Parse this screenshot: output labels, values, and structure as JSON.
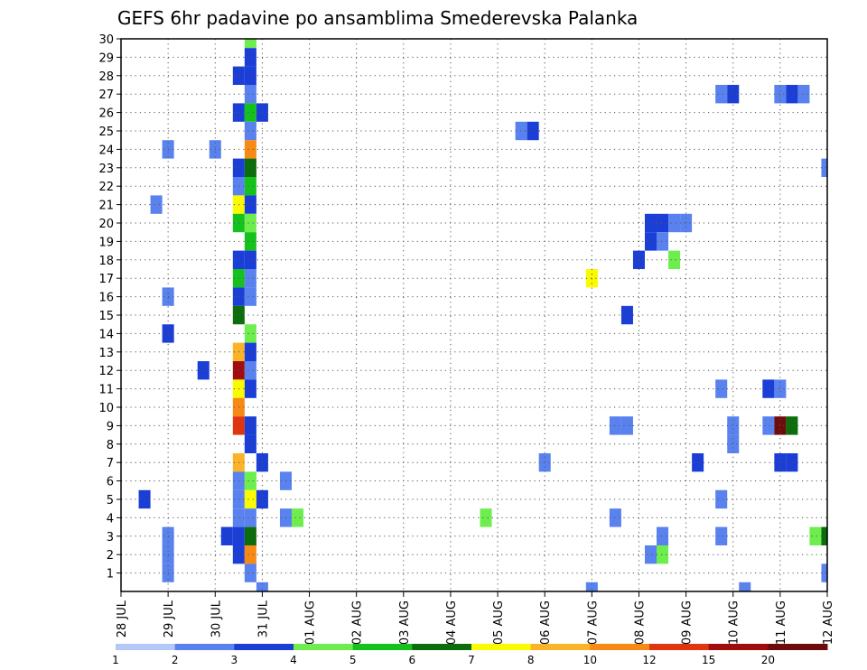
{
  "chart_data": {
    "type": "heatmap",
    "title": "GEFS 6hr padavine po ansamblima Smederevska Palanka",
    "x_dates": [
      "28 JUL",
      "29 JUL",
      "30 JUL",
      "31 JUL",
      "01 AUG",
      "02 AUG",
      "03 AUG",
      "04 AUG",
      "05 AUG",
      "06 AUG",
      "07 AUG",
      "08 AUG",
      "09 AUG",
      "10 AUG",
      "11 AUG",
      "12 AUG"
    ],
    "steps_per_day": 4,
    "y_members": [
      1,
      2,
      3,
      4,
      5,
      6,
      7,
      8,
      9,
      10,
      11,
      12,
      13,
      14,
      15,
      16,
      17,
      18,
      19,
      20,
      21,
      22,
      23,
      24,
      25,
      26,
      27,
      28,
      29,
      30
    ],
    "xlim": [
      0,
      60
    ],
    "ylim": [
      0,
      30
    ],
    "grid": true,
    "colorbar": {
      "ticks": [
        "1",
        "2",
        "3",
        "4",
        "5",
        "6",
        "7",
        "8",
        "10",
        "12",
        "15",
        "20"
      ],
      "colors": [
        "#b4c8f7",
        "#5a82ef",
        "#1a3ed6",
        "#6ded4e",
        "#15c11c",
        "#0c6d0c",
        "#fafa00",
        "#fbb428",
        "#f68a15",
        "#e0350f",
        "#a10c0c",
        "#6e0c0c"
      ]
    },
    "cells": [
      [
        11,
        30,
        3
      ],
      [
        11,
        29,
        2
      ],
      [
        10,
        28,
        2
      ],
      [
        11,
        28,
        2
      ],
      [
        11,
        27,
        1
      ],
      [
        10,
        26,
        2
      ],
      [
        11,
        26,
        4
      ],
      [
        12,
        26,
        2
      ],
      [
        11,
        25,
        1
      ],
      [
        11,
        24,
        8
      ],
      [
        8,
        24,
        1
      ],
      [
        10,
        23,
        2
      ],
      [
        11,
        23,
        5
      ],
      [
        10,
        22,
        1
      ],
      [
        11,
        22,
        4
      ],
      [
        10,
        21,
        6
      ],
      [
        11,
        21,
        2
      ],
      [
        10,
        20,
        4
      ],
      [
        11,
        20,
        3
      ],
      [
        11,
        19,
        4
      ],
      [
        10,
        18,
        2
      ],
      [
        11,
        18,
        2
      ],
      [
        10,
        17,
        4
      ],
      [
        11,
        17,
        1
      ],
      [
        10,
        16,
        2
      ],
      [
        11,
        16,
        1
      ],
      [
        10,
        15,
        5
      ],
      [
        11,
        14,
        3
      ],
      [
        10,
        13,
        7
      ],
      [
        11,
        13,
        2
      ],
      [
        10,
        12,
        10
      ],
      [
        11,
        12,
        1
      ],
      [
        10,
        11,
        6
      ],
      [
        11,
        11,
        2
      ],
      [
        10,
        10,
        8
      ],
      [
        10,
        9,
        9
      ],
      [
        11,
        9,
        2
      ],
      [
        11,
        8,
        2
      ],
      [
        10,
        7,
        7
      ],
      [
        12,
        7,
        2
      ],
      [
        10,
        6,
        1
      ],
      [
        11,
        6,
        3
      ],
      [
        10,
        5,
        1
      ],
      [
        11,
        5,
        6
      ],
      [
        12,
        5,
        2
      ],
      [
        10,
        4,
        1
      ],
      [
        11,
        4,
        1
      ],
      [
        10,
        3,
        2
      ],
      [
        11,
        3,
        5
      ],
      [
        10,
        2,
        2
      ],
      [
        11,
        2,
        8
      ],
      [
        11,
        1,
        1
      ],
      [
        9,
        3,
        2
      ],
      [
        4,
        24,
        1
      ],
      [
        3,
        21,
        1
      ],
      [
        4,
        16,
        1
      ],
      [
        4,
        14,
        2
      ],
      [
        7,
        12,
        2
      ],
      [
        2,
        5,
        2
      ],
      [
        4,
        3,
        1
      ],
      [
        4,
        2,
        1
      ],
      [
        4,
        1,
        1
      ],
      [
        14,
        6,
        1
      ],
      [
        14,
        4,
        1
      ],
      [
        15,
        4,
        3
      ],
      [
        12,
        0,
        1
      ],
      [
        31,
        4,
        3
      ],
      [
        34,
        25,
        1
      ],
      [
        35,
        25,
        2
      ],
      [
        40,
        17,
        6
      ],
      [
        36,
        7,
        1
      ],
      [
        45,
        19,
        2
      ],
      [
        44,
        18,
        2
      ],
      [
        43,
        15,
        2
      ],
      [
        45,
        20,
        2
      ],
      [
        46,
        20,
        2
      ],
      [
        47,
        20,
        1
      ],
      [
        48,
        20,
        1
      ],
      [
        46,
        19,
        1
      ],
      [
        47,
        18,
        3
      ],
      [
        51,
        27,
        1
      ],
      [
        52,
        27,
        2
      ],
      [
        56,
        27,
        1
      ],
      [
        57,
        27,
        2
      ],
      [
        58,
        27,
        1
      ],
      [
        51,
        11,
        1
      ],
      [
        55,
        11,
        2
      ],
      [
        56,
        11,
        1
      ],
      [
        42,
        9,
        1
      ],
      [
        43,
        9,
        1
      ],
      [
        52,
        9,
        1
      ],
      [
        52,
        8,
        1
      ],
      [
        55,
        9,
        1
      ],
      [
        56,
        9,
        11
      ],
      [
        57,
        9,
        5
      ],
      [
        49,
        7,
        2
      ],
      [
        56,
        7,
        2
      ],
      [
        57,
        7,
        2
      ],
      [
        51,
        5,
        1
      ],
      [
        42,
        4,
        1
      ],
      [
        46,
        3,
        1
      ],
      [
        51,
        3,
        1
      ],
      [
        45,
        2,
        1
      ],
      [
        46,
        2,
        3
      ],
      [
        59,
        3,
        3
      ],
      [
        60,
        3,
        5
      ],
      [
        60,
        1,
        1
      ],
      [
        40,
        0,
        1
      ],
      [
        53,
        0,
        1
      ],
      [
        60,
        23,
        1
      ]
    ]
  }
}
